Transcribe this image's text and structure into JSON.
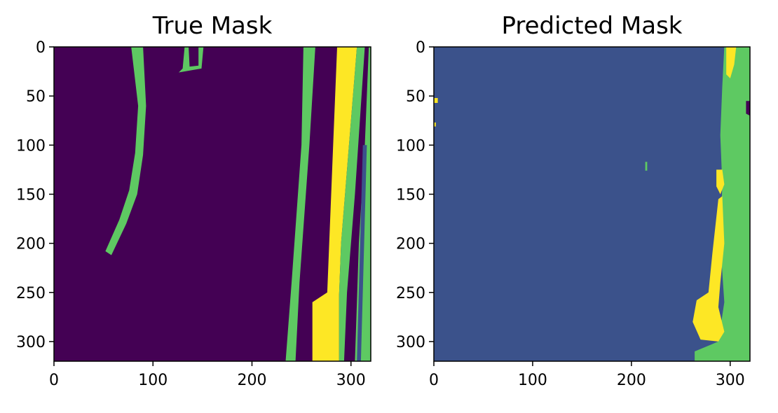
{
  "chart_data": [
    {
      "type": "heatmap",
      "title": "True Mask",
      "xlim": [
        0,
        320
      ],
      "ylim": [
        320,
        0
      ],
      "xticks": [
        0,
        100,
        200,
        300
      ],
      "yticks": [
        0,
        50,
        100,
        150,
        200,
        250,
        300
      ],
      "colors": {
        "background": "#440154",
        "class1": "#5ec962",
        "class2": "#fde725",
        "class3": "#3b528b"
      },
      "regions": [
        {
          "class": "background",
          "points": [
            [
              0,
              0
            ],
            [
              320,
              0
            ],
            [
              320,
              320
            ],
            [
              0,
              320
            ]
          ]
        },
        {
          "class": "class1",
          "points": [
            [
              78,
              0
            ],
            [
              90,
              0
            ],
            [
              93,
              60
            ],
            [
              90,
              110
            ],
            [
              84,
              150
            ],
            [
              73,
              180
            ],
            [
              58,
              212
            ],
            [
              52,
              208
            ],
            [
              66,
              176
            ],
            [
              76,
              146
            ],
            [
              82,
              108
            ],
            [
              85,
              60
            ]
          ]
        },
        {
          "class": "class1",
          "points": [
            [
              132,
              0
            ],
            [
              136,
              0
            ],
            [
              137,
              20
            ],
            [
              146,
              19
            ],
            [
              146,
              0
            ],
            [
              151,
              0
            ],
            [
              149,
              22
            ],
            [
              126,
              26
            ],
            [
              130,
              22
            ]
          ]
        },
        {
          "class": "class1",
          "points": [
            [
              252,
              0
            ],
            [
              264,
              0
            ],
            [
              258,
              100
            ],
            [
              248,
              240
            ],
            [
              244,
              320
            ],
            [
              234,
              320
            ],
            [
              240,
              240
            ],
            [
              250,
              100
            ]
          ]
        },
        {
          "class": "class2",
          "points": [
            [
              286,
              0
            ],
            [
              306,
              0
            ],
            [
              298,
              100
            ],
            [
              290,
              200
            ],
            [
              288,
              252
            ],
            [
              288,
              320
            ],
            [
              261,
              320
            ],
            [
              261,
              260
            ],
            [
              276,
              250
            ],
            [
              278,
              200
            ],
            [
              282,
              100
            ]
          ]
        },
        {
          "class": "class1",
          "points": [
            [
              306,
              0
            ],
            [
              314,
              0
            ],
            [
              304,
              150
            ],
            [
              296,
              250
            ],
            [
              293,
              320
            ],
            [
              288,
              320
            ],
            [
              288,
              252
            ],
            [
              290,
              200
            ],
            [
              298,
              100
            ]
          ]
        },
        {
          "class": "class1",
          "points": [
            [
              318,
              0
            ],
            [
              320,
              0
            ],
            [
              320,
              320
            ],
            [
              304,
              320
            ],
            [
              308,
              200
            ],
            [
              314,
              100
            ]
          ]
        },
        {
          "class": "class3",
          "points": [
            [
              312,
              100
            ],
            [
              316,
              100
            ],
            [
              310,
              320
            ],
            [
              306,
              320
            ]
          ]
        }
      ]
    },
    {
      "type": "heatmap",
      "title": "Predicted Mask",
      "xlim": [
        0,
        320
      ],
      "ylim": [
        320,
        0
      ],
      "xticks": [
        0,
        100,
        200,
        300
      ],
      "yticks": [
        0,
        50,
        100,
        150,
        200,
        250,
        300
      ],
      "colors": {
        "background": "#3b528b",
        "class1": "#5ec962",
        "class2": "#fde725",
        "class3": "#440154"
      },
      "regions": [
        {
          "class": "background",
          "points": [
            [
              0,
              0
            ],
            [
              320,
              0
            ],
            [
              320,
              320
            ],
            [
              0,
              320
            ]
          ]
        },
        {
          "class": "class1",
          "points": [
            [
              294,
              0
            ],
            [
              320,
              0
            ],
            [
              320,
              320
            ],
            [
              264,
              320
            ],
            [
              264,
              310
            ],
            [
              288,
              300
            ],
            [
              294,
              260
            ],
            [
              290,
              200
            ],
            [
              292,
              140
            ],
            [
              290,
              90
            ],
            [
              292,
              40
            ]
          ]
        },
        {
          "class": "class2",
          "points": [
            [
              296,
              0
            ],
            [
              306,
              0
            ],
            [
              304,
              18
            ],
            [
              300,
              32
            ],
            [
              296,
              28
            ]
          ]
        },
        {
          "class": "class2",
          "points": [
            [
              288,
              155
            ],
            [
              292,
              152
            ],
            [
              294,
              200
            ],
            [
              290,
              240
            ],
            [
              288,
              265
            ],
            [
              294,
              290
            ],
            [
              288,
              300
            ],
            [
              270,
              298
            ],
            [
              262,
              280
            ],
            [
              266,
              258
            ],
            [
              278,
              250
            ],
            [
              282,
              210
            ]
          ]
        },
        {
          "class": "class2",
          "points": [
            [
              286,
              125
            ],
            [
              292,
              125
            ],
            [
              294,
              140
            ],
            [
              290,
              150
            ],
            [
              286,
              142
            ]
          ]
        },
        {
          "class": "class2",
          "points": [
            [
              0,
              52
            ],
            [
              4,
              52
            ],
            [
              4,
              57
            ],
            [
              0,
              57
            ]
          ]
        },
        {
          "class": "class2",
          "points": [
            [
              0,
              77
            ],
            [
              2,
              77
            ],
            [
              2,
              81
            ],
            [
              0,
              81
            ]
          ]
        },
        {
          "class": "class3",
          "points": [
            [
              316,
              55
            ],
            [
              320,
              55
            ],
            [
              320,
              70
            ],
            [
              316,
              68
            ]
          ]
        },
        {
          "class": "class1",
          "points": [
            [
              214,
              117
            ],
            [
              216,
              117
            ],
            [
              216,
              126
            ],
            [
              214,
              126
            ]
          ]
        }
      ]
    }
  ]
}
